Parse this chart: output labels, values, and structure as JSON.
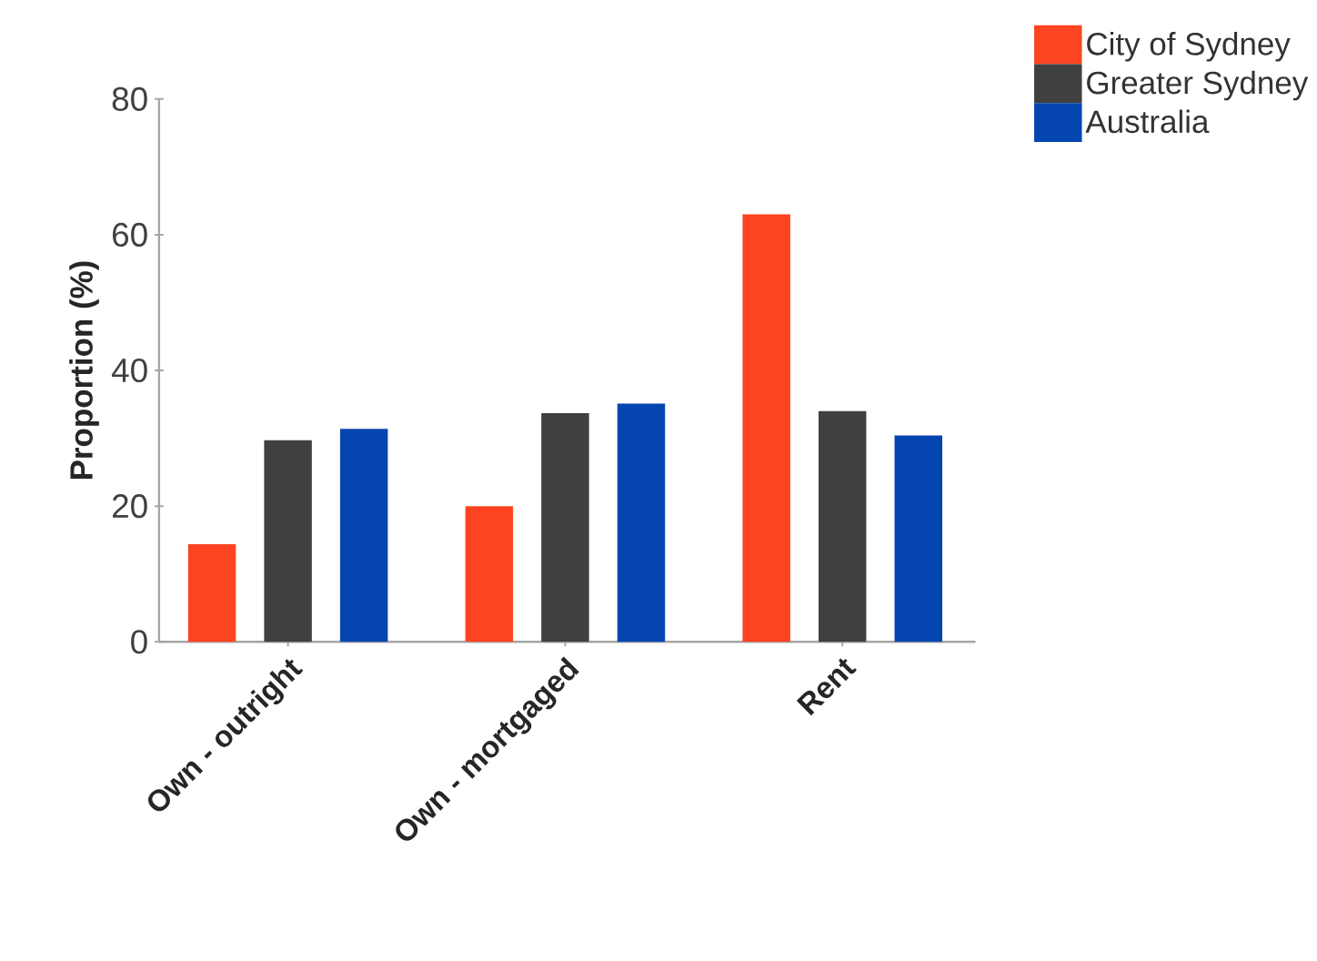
{
  "chart_data": {
    "type": "bar",
    "ylabel": "Proportion (%)",
    "categories": [
      "Own - outright",
      "Own - mortgaged",
      "Rent"
    ],
    "series": [
      {
        "name": "City of Sydney",
        "color": "#fc4420",
        "values": [
          14.4,
          20.0,
          63.0
        ]
      },
      {
        "name": "Greater Sydney",
        "color": "#404040",
        "values": [
          29.7,
          33.7,
          34.0
        ]
      },
      {
        "name": "Australia",
        "color": "#0545b0",
        "values": [
          31.4,
          35.1,
          30.4
        ]
      }
    ],
    "ylim": [
      0,
      80
    ],
    "yticks": [
      0,
      20,
      40,
      60,
      80
    ],
    "legend": "top right"
  }
}
